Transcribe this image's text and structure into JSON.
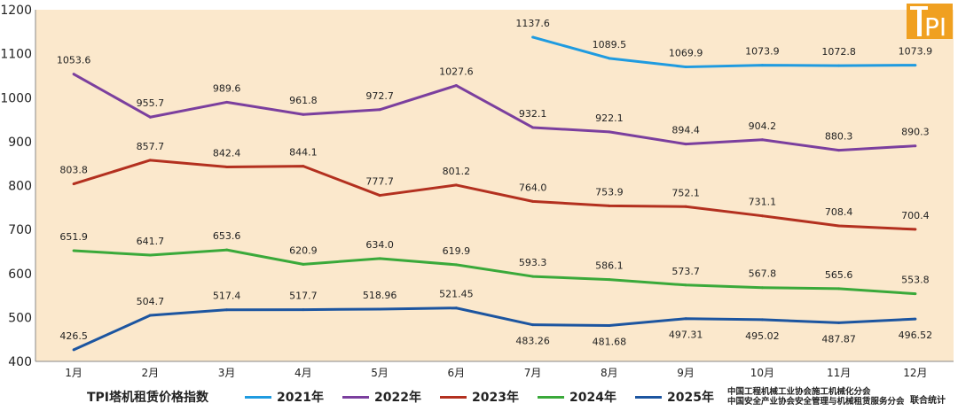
{
  "chart_data": {
    "type": "line",
    "title": "TPI塔机租赁价格指数",
    "categories": [
      "1月",
      "2月",
      "3月",
      "4月",
      "5月",
      "6月",
      "7月",
      "8月",
      "9月",
      "10月",
      "11月",
      "12月"
    ],
    "ylim": [
      400,
      1200
    ],
    "yticks": [
      400,
      500,
      600,
      700,
      800,
      900,
      1000,
      1100,
      1200
    ],
    "grid": false,
    "legend_position": "bottom",
    "series": [
      {
        "name": "2021年",
        "color": "#1f9be0",
        "values": [
          null,
          null,
          null,
          null,
          null,
          null,
          1137.6,
          1089.5,
          1069.9,
          1073.9,
          1072.8,
          1073.9
        ],
        "labels": [
          null,
          null,
          null,
          null,
          null,
          null,
          "1137.6",
          "1089.5",
          "1069.9",
          "1073.9",
          "1072.8",
          "1073.9"
        ]
      },
      {
        "name": "2022年",
        "color": "#7b3f9e",
        "values": [
          1053.6,
          955.7,
          989.6,
          961.8,
          972.7,
          1027.6,
          932.1,
          922.1,
          894.4,
          904.2,
          880.3,
          890.3
        ],
        "labels": [
          "1053.6",
          "955.7",
          "989.6",
          "961.8",
          "972.7",
          "1027.6",
          "932.1",
          "922.1",
          "894.4",
          "904.2",
          "880.3",
          "890.3"
        ]
      },
      {
        "name": "2023年",
        "color": "#b3301f",
        "values": [
          803.8,
          857.7,
          842.4,
          844.1,
          777.7,
          801.2,
          764.0,
          753.9,
          752.1,
          731.1,
          708.4,
          700.4
        ],
        "labels": [
          "803.8",
          "857.7",
          "842.4",
          "844.1",
          "777.7",
          "801.2",
          "764.0",
          "753.9",
          "752.1",
          "731.1",
          "708.4",
          "700.4"
        ]
      },
      {
        "name": "2024年",
        "color": "#3aa93a",
        "values": [
          651.9,
          641.7,
          653.6,
          620.9,
          634.0,
          619.9,
          593.3,
          586.1,
          573.7,
          567.8,
          565.6,
          553.8
        ],
        "labels": [
          "651.9",
          "641.7",
          "653.6",
          "620.9",
          "634.0",
          "619.9",
          "593.3",
          "586.1",
          "573.7",
          "567.8",
          "565.6",
          "553.8"
        ]
      },
      {
        "name": "2025年",
        "color": "#1c55a0",
        "values": [
          426.5,
          504.7,
          517.4,
          517.7,
          518.96,
          521.45,
          483.26,
          481.68,
          497.31,
          495.02,
          487.87,
          496.52
        ],
        "labels": [
          "426.5",
          "504.7",
          "517.4",
          "517.7",
          "518.96",
          "521.45",
          "483.26",
          "481.68",
          "497.31",
          "495.02",
          "487.87",
          "496.52"
        ]
      }
    ]
  },
  "footer": {
    "org_line1": "中国工程机械工业协会施工机械化分会",
    "org_line2": "中国安全产业协会安全管理与机械租赁服务分会",
    "joint": "联合统计"
  },
  "logo": {
    "text": "TPI",
    "color": "#f0a020"
  }
}
